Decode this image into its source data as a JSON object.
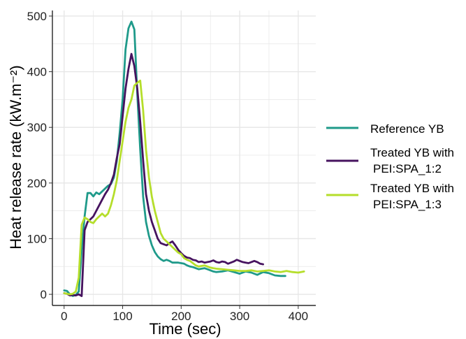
{
  "chart_data": {
    "type": "line",
    "title": "",
    "xlabel": "Time (sec)",
    "ylabel": "Heat release rate (kW.m⁻²)",
    "xlim": [
      -20,
      430
    ],
    "ylim": [
      -20,
      510
    ],
    "xticks": [
      0,
      100,
      200,
      300,
      400
    ],
    "yticks": [
      0,
      100,
      200,
      300,
      400,
      500
    ],
    "grid": true,
    "legend_position": "right",
    "series": [
      {
        "name": "Reference YB",
        "legend_lines": [
          "Reference YB"
        ],
        "color": "#1f9a8a",
        "points": [
          [
            0,
            7
          ],
          [
            5,
            6
          ],
          [
            10,
            0
          ],
          [
            15,
            -3
          ],
          [
            20,
            -1
          ],
          [
            25,
            5
          ],
          [
            30,
            80
          ],
          [
            35,
            140
          ],
          [
            40,
            182
          ],
          [
            45,
            182
          ],
          [
            50,
            176
          ],
          [
            55,
            183
          ],
          [
            60,
            180
          ],
          [
            65,
            185
          ],
          [
            70,
            190
          ],
          [
            75,
            195
          ],
          [
            80,
            198
          ],
          [
            85,
            210
          ],
          [
            90,
            240
          ],
          [
            95,
            290
          ],
          [
            100,
            350
          ],
          [
            105,
            440
          ],
          [
            110,
            478
          ],
          [
            115,
            490
          ],
          [
            120,
            476
          ],
          [
            125,
            360
          ],
          [
            130,
            260
          ],
          [
            135,
            175
          ],
          [
            140,
            130
          ],
          [
            145,
            105
          ],
          [
            150,
            88
          ],
          [
            155,
            76
          ],
          [
            160,
            68
          ],
          [
            165,
            63
          ],
          [
            170,
            60
          ],
          [
            175,
            62
          ],
          [
            180,
            60
          ],
          [
            185,
            57
          ],
          [
            190,
            57
          ],
          [
            195,
            57
          ],
          [
            200,
            56
          ],
          [
            205,
            55
          ],
          [
            210,
            52
          ],
          [
            215,
            50
          ],
          [
            220,
            49
          ],
          [
            225,
            47
          ],
          [
            230,
            45
          ],
          [
            235,
            46
          ],
          [
            240,
            47
          ],
          [
            245,
            45
          ],
          [
            250,
            43
          ],
          [
            255,
            41
          ],
          [
            260,
            40
          ],
          [
            270,
            41
          ],
          [
            280,
            43
          ],
          [
            290,
            40
          ],
          [
            300,
            37
          ],
          [
            310,
            41
          ],
          [
            320,
            39
          ],
          [
            330,
            35
          ],
          [
            340,
            40
          ],
          [
            350,
            38
          ],
          [
            360,
            34
          ],
          [
            370,
            33
          ],
          [
            378,
            33
          ]
        ]
      },
      {
        "name": "Treated YB with PEI:SPA_1:2",
        "legend_lines": [
          "Treated YB with",
          "PEI:SPA_1:2"
        ],
        "color": "#46135f",
        "points": [
          [
            0,
            2
          ],
          [
            5,
            1
          ],
          [
            10,
            -2
          ],
          [
            15,
            -1
          ],
          [
            20,
            -2
          ],
          [
            25,
            0
          ],
          [
            30,
            -3
          ],
          [
            35,
            115
          ],
          [
            40,
            130
          ],
          [
            45,
            135
          ],
          [
            50,
            140
          ],
          [
            55,
            150
          ],
          [
            60,
            160
          ],
          [
            65,
            170
          ],
          [
            70,
            180
          ],
          [
            75,
            188
          ],
          [
            80,
            200
          ],
          [
            85,
            215
          ],
          [
            90,
            245
          ],
          [
            95,
            270
          ],
          [
            100,
            320
          ],
          [
            105,
            370
          ],
          [
            110,
            405
          ],
          [
            115,
            432
          ],
          [
            120,
            410
          ],
          [
            125,
            370
          ],
          [
            130,
            310
          ],
          [
            135,
            240
          ],
          [
            140,
            180
          ],
          [
            145,
            150
          ],
          [
            150,
            130
          ],
          [
            155,
            115
          ],
          [
            160,
            100
          ],
          [
            165,
            92
          ],
          [
            170,
            90
          ],
          [
            175,
            88
          ],
          [
            180,
            92
          ],
          [
            185,
            95
          ],
          [
            190,
            88
          ],
          [
            195,
            80
          ],
          [
            200,
            74
          ],
          [
            205,
            69
          ],
          [
            210,
            66
          ],
          [
            215,
            65
          ],
          [
            220,
            62
          ],
          [
            225,
            61
          ],
          [
            230,
            58
          ],
          [
            235,
            59
          ],
          [
            240,
            57
          ],
          [
            245,
            58
          ],
          [
            250,
            59
          ],
          [
            255,
            61
          ],
          [
            260,
            58
          ],
          [
            265,
            57
          ],
          [
            270,
            59
          ],
          [
            275,
            58
          ],
          [
            280,
            55
          ],
          [
            285,
            57
          ],
          [
            290,
            59
          ],
          [
            295,
            62
          ],
          [
            300,
            60
          ],
          [
            305,
            58
          ],
          [
            310,
            57
          ],
          [
            315,
            56
          ],
          [
            320,
            58
          ],
          [
            325,
            60
          ],
          [
            330,
            58
          ],
          [
            335,
            55
          ],
          [
            340,
            54
          ]
        ]
      },
      {
        "name": "Treated YB with PEI:SPA_1:3",
        "legend_lines": [
          "Treated YB with",
          "PEI:SPA_1:3"
        ],
        "color": "#b5de2b",
        "points": [
          [
            0,
            2
          ],
          [
            5,
            1
          ],
          [
            10,
            0
          ],
          [
            15,
            1
          ],
          [
            20,
            5
          ],
          [
            25,
            30
          ],
          [
            30,
            125
          ],
          [
            35,
            138
          ],
          [
            40,
            135
          ],
          [
            45,
            130
          ],
          [
            50,
            128
          ],
          [
            55,
            135
          ],
          [
            60,
            140
          ],
          [
            65,
            145
          ],
          [
            70,
            140
          ],
          [
            75,
            145
          ],
          [
            80,
            160
          ],
          [
            85,
            180
          ],
          [
            90,
            205
          ],
          [
            95,
            240
          ],
          [
            100,
            275
          ],
          [
            105,
            310
          ],
          [
            110,
            335
          ],
          [
            115,
            350
          ],
          [
            120,
            375
          ],
          [
            125,
            380
          ],
          [
            130,
            384
          ],
          [
            135,
            330
          ],
          [
            140,
            260
          ],
          [
            145,
            210
          ],
          [
            150,
            175
          ],
          [
            155,
            150
          ],
          [
            160,
            130
          ],
          [
            165,
            110
          ],
          [
            170,
            100
          ],
          [
            175,
            95
          ],
          [
            180,
            90
          ],
          [
            185,
            85
          ],
          [
            190,
            80
          ],
          [
            195,
            75
          ],
          [
            200,
            72
          ],
          [
            205,
            65
          ],
          [
            210,
            62
          ],
          [
            215,
            60
          ],
          [
            220,
            56
          ],
          [
            225,
            52
          ],
          [
            230,
            50
          ],
          [
            235,
            51
          ],
          [
            240,
            52
          ],
          [
            245,
            50
          ],
          [
            250,
            48
          ],
          [
            255,
            47
          ],
          [
            260,
            46
          ],
          [
            270,
            45
          ],
          [
            280,
            44
          ],
          [
            290,
            43
          ],
          [
            300,
            42
          ],
          [
            310,
            42
          ],
          [
            320,
            43
          ],
          [
            330,
            41
          ],
          [
            340,
            42
          ],
          [
            350,
            43
          ],
          [
            360,
            41
          ],
          [
            370,
            40
          ],
          [
            380,
            42
          ],
          [
            390,
            40
          ],
          [
            400,
            39
          ],
          [
            410,
            41
          ]
        ]
      }
    ]
  }
}
